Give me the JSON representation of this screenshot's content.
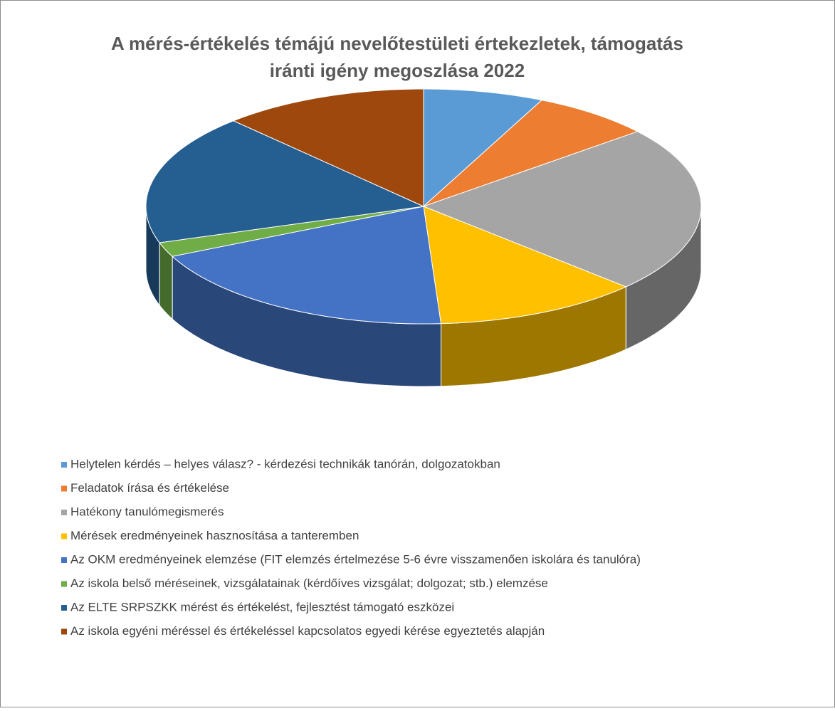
{
  "chart_data": {
    "type": "pie",
    "title": "A mérés-értékelés témájú nevelőtestületi értekezletek, támogatás irányti igény megoszlása 2022",
    "title_lines": [
      "A mérés-értékelés témájú nevelőtestületi értekezletek, támogatás",
      "iránti igény megoszlása 2022"
    ],
    "categories": [
      "Helytelen kérdés – helyes válasz? - kérdezési technikák tanórán, dolgozatokban",
      "Feladatok írása és értékelése",
      "Hatékony tanulómegismerés",
      "Mérések eredményeinek hasznosítása a tanteremben",
      "Az OKM eredményeinek elemzése (FIT elemzés értelmezése 5-6 évre visszamenően iskolára és tanulóra)",
      "Az iskola belső méréseinek, vizsgálatainak (kérdőíves vizsgálat; dolgozat; stb.) elemzése",
      "Az ELTE SRPSZKK mérést és értékelést, fejlesztést támogató eszközei",
      "Az iskola egyéni méréssel és értékeléssel kapcsolatos egyedi kérése egyeztetés alapján"
    ],
    "values": [
      7,
      7,
      23,
      12,
      19,
      2,
      18,
      12
    ],
    "colors": [
      "#5b9bd5",
      "#ed7d31",
      "#a5a5a5",
      "#ffc000",
      "#4472c4",
      "#70ad47",
      "#255e91",
      "#9e480e"
    ],
    "legend": "bottom",
    "style": "3d"
  }
}
